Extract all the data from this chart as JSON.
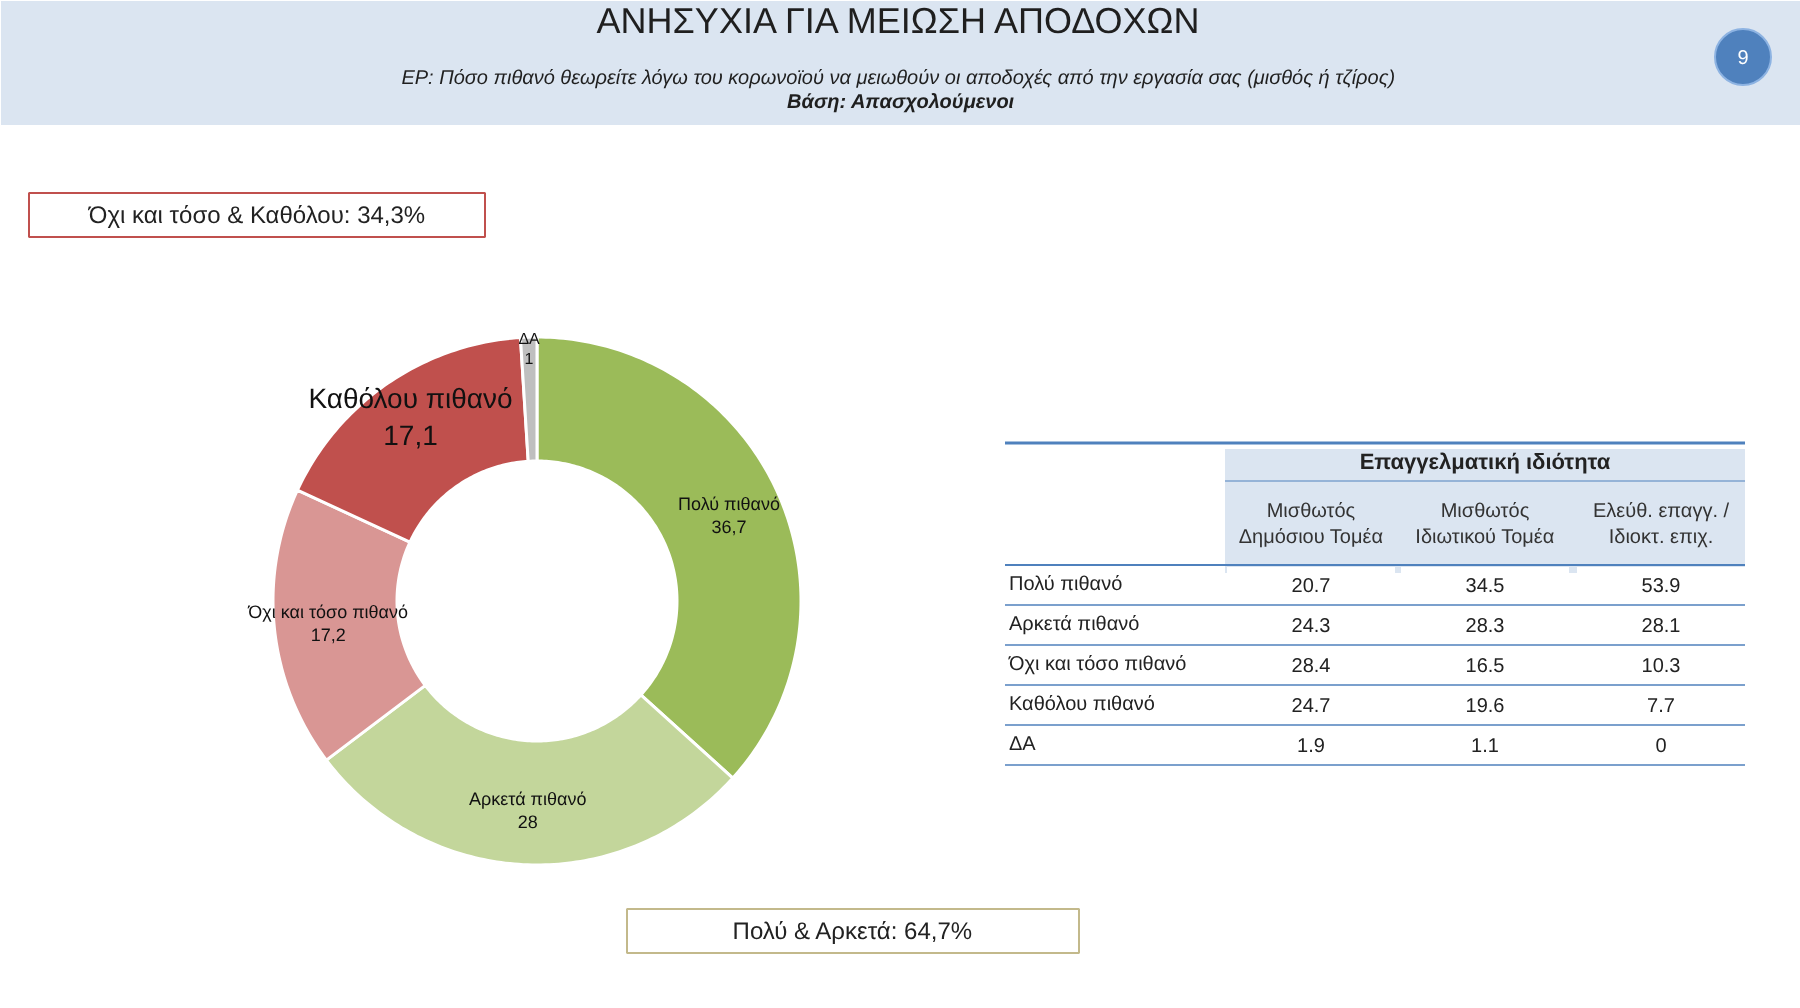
{
  "chart_data": [
    {
      "type": "donut",
      "title": "ΑΝΗΣΥΧΙΑ ΓΙΑ ΜΕΙΩΣΗ ΑΠΟΔΟΧΩΝ",
      "subtitle": "ΕΡ: Πόσο πιθανό θεωρείτε λόγω του κορωνοϊού να μειωθούν οι αποδοχές από την εργασία σας  (μισθός ή τζίρος)\nΒάση: Απασχολούμενοι",
      "categories": [
        "Πολύ πιθανό",
        "Αρκετά πιθανό",
        "Όχι και τόσο πιθανό",
        "Καθόλου πιθανό",
        "ΔΑ"
      ],
      "values": [
        36.7,
        28,
        17.2,
        17.1,
        1
      ],
      "value_labels": [
        "36,7",
        "28",
        "17,2",
        "17,1",
        "1"
      ],
      "colors": [
        "#9bbb59",
        "#c3d69b",
        "#d99694",
        "#c0504d",
        "#bfbfbf"
      ],
      "annotations": [
        "Όχι και τόσο & Καθόλου: 34,3%",
        "Πολύ & Αρκετά: 64,7%",
        "9"
      ]
    },
    {
      "type": "heatmap",
      "title": "Επαγγελματική ιδιότητα",
      "categories": [
        "Μισθωτός\nΔημόσιου Τομέα",
        "Μισθωτός\nΙδιωτικού Τομέα",
        "Ελεύθ. επαγγ. /\nΙδιοκτ. επιχ."
      ],
      "y_categories": [
        "Πολύ πιθανό",
        "Αρκετά πιθανό",
        "Όχι και τόσο πιθανό",
        "Καθόλου πιθανό",
        "ΔΑ"
      ],
      "cells": [
        [
          20.7,
          34.5,
          53.9
        ],
        [
          24.3,
          28.3,
          28.1
        ],
        [
          28.4,
          16.5,
          10.3
        ],
        [
          24.7,
          19.6,
          7.7
        ],
        [
          1.9,
          1.1,
          0
        ]
      ],
      "color": "#ffffff",
      "data_labels": true
    }
  ]
}
